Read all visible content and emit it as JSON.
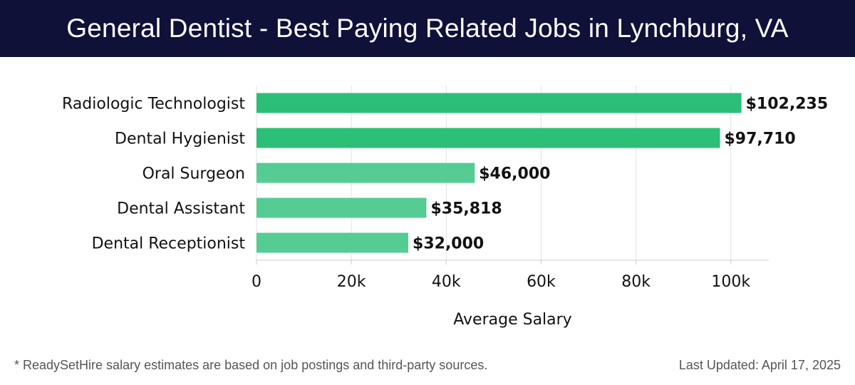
{
  "header": {
    "title": "General Dentist - Best Paying Related Jobs in Lynchburg, VA"
  },
  "chart_data": {
    "type": "bar",
    "orientation": "horizontal",
    "categories": [
      "Radiologic Technologist",
      "Dental Hygienist",
      "Oral Surgeon",
      "Dental Assistant",
      "Dental Receptionist"
    ],
    "values": [
      102235,
      97710,
      46000,
      35818,
      32000
    ],
    "value_labels": [
      "$102,235",
      "$97,710",
      "$46,000",
      "$35,818",
      "$32,000"
    ],
    "xlabel": "Average Salary",
    "ylabel": "",
    "xlim": [
      0,
      108000
    ],
    "xticks": [
      0,
      20000,
      40000,
      60000,
      80000,
      100000
    ],
    "xtick_labels": [
      "0",
      "20k",
      "40k",
      "60k",
      "80k",
      "100k"
    ],
    "grid": true,
    "colors": {
      "primary": "#2bbf77",
      "secondary": "#55cc94",
      "grid": "#e3e3e3",
      "axis": "#cccccc",
      "text": "#111111"
    }
  },
  "footer": {
    "note": "* ReadySetHire salary estimates are based on job postings and third-party sources.",
    "updated": "Last Updated: April 17, 2025"
  }
}
